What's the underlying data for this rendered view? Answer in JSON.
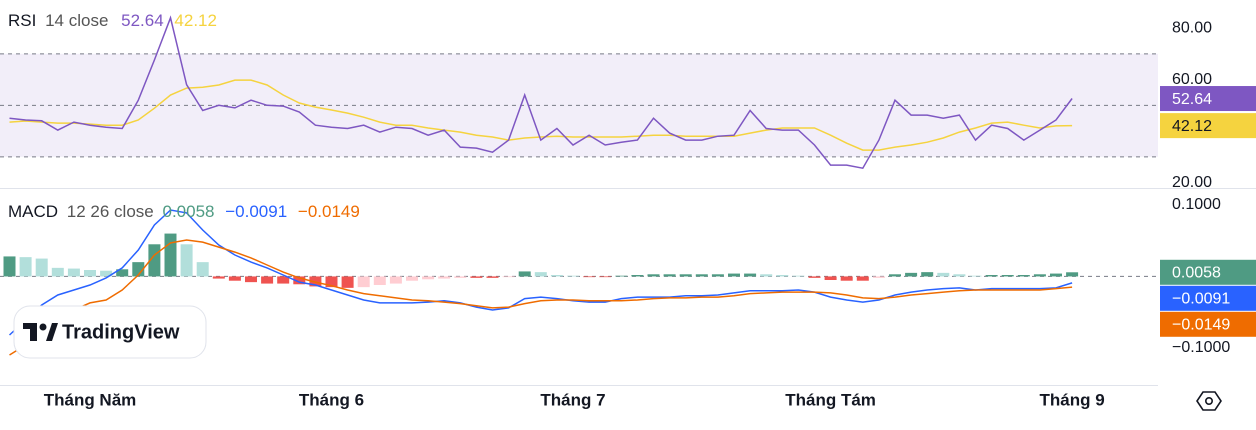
{
  "chart_data": [
    {
      "type": "line",
      "title": "RSI",
      "params": "14 close",
      "legend_values": [
        "52.64",
        "42.12"
      ],
      "series": [
        {
          "color": "#7e57c2",
          "values": [
            45,
            44.3,
            44,
            40.4,
            43.5,
            42.3,
            41.5,
            41,
            52,
            67.6,
            84,
            58,
            48,
            50,
            49,
            52,
            50,
            49.7,
            47.4,
            42.3,
            41.5,
            41,
            42.3,
            39.6,
            41.5,
            41,
            38.4,
            40.4,
            33.8,
            33.4,
            31.8,
            36.5,
            54,
            36.5,
            41,
            34.6,
            38.4,
            34.6,
            35.7,
            36.5,
            45,
            39.2,
            36.5,
            36.5,
            38,
            38.4,
            48,
            41,
            40.4,
            40.4,
            34.6,
            26.8,
            26.8,
            25.6,
            36.5,
            52,
            46.2,
            46.2,
            45,
            46.2,
            36.5,
            42.3,
            41,
            36.5,
            40.4,
            44.3,
            52.64
          ]
        },
        {
          "color": "#f5d33f",
          "values": [
            43.5,
            43.9,
            43.5,
            43.1,
            43.1,
            42.7,
            42.3,
            42.3,
            44.3,
            48.9,
            54,
            56.7,
            57,
            57.9,
            59.8,
            59.8,
            57.9,
            54,
            50.9,
            49.3,
            48.2,
            47,
            45.4,
            43.5,
            42.3,
            42.3,
            41.2,
            40.4,
            39.6,
            38.4,
            37.7,
            36.5,
            37.3,
            37.7,
            38,
            37.7,
            37.7,
            37.7,
            37.7,
            38,
            38.4,
            38.4,
            38,
            38,
            38,
            38,
            39.2,
            40.4,
            41.2,
            41.2,
            41.2,
            38.4,
            35.3,
            32.6,
            32.6,
            33.8,
            34.6,
            35.7,
            37.3,
            39.6,
            41.2,
            43.1,
            43.5,
            42.3,
            41.2,
            42,
            42.12
          ]
        }
      ],
      "band": [
        30,
        70
      ],
      "band_color": "#7e57c2",
      "middle": 50,
      "ylim": [
        17.9,
        90.9
      ],
      "yticks": [
        {
          "value": 80,
          "label": "80.00"
        },
        {
          "value": 60,
          "label": "60.00"
        },
        {
          "value": 20,
          "label": "20.00"
        }
      ],
      "grid": false
    },
    {
      "type": "macd",
      "title": "MACD",
      "params": "12 26 close",
      "legend_values": [
        "0.0058",
        "−0.0091",
        "−0.0149"
      ],
      "categories": [
        null,
        null,
        null,
        null,
        null,
        "Tháng Năm",
        null,
        null,
        null,
        null,
        null,
        null,
        null,
        null,
        null,
        null,
        null,
        null,
        null,
        null,
        "Tháng 6",
        null,
        null,
        null,
        null,
        null,
        null,
        null,
        null,
        null,
        null,
        null,
        null,
        null,
        null,
        "Tháng 7",
        null,
        null,
        null,
        null,
        null,
        null,
        null,
        null,
        null,
        null,
        null,
        null,
        null,
        null,
        null,
        "Tháng Tám",
        null,
        null,
        null,
        null,
        null,
        null,
        null,
        null,
        null,
        null,
        null,
        null,
        null,
        null,
        "Tháng 9"
      ],
      "histogram": {
        "colors": [
          "#4f9b83",
          "#b2dfdb",
          "#ef5350",
          "#ffcdd2"
        ],
        "values": [
          0.028,
          0.027,
          0.025,
          0.012,
          0.011,
          0.009,
          0.008,
          0.01,
          0.02,
          0.045,
          0.06,
          0.045,
          0.02,
          -0.003,
          -0.006,
          -0.008,
          -0.01,
          -0.01,
          -0.011,
          -0.014,
          -0.015,
          -0.016,
          -0.015,
          -0.012,
          -0.01,
          -0.006,
          -0.004,
          -0.003,
          -0.002,
          -0.002,
          -0.002,
          -0.001,
          0.007,
          0.006,
          0.002,
          0.001,
          -0.001,
          -0.001,
          0.001,
          0.002,
          0.003,
          0.003,
          0.003,
          0.003,
          0.003,
          0.004,
          0.004,
          0.003,
          0.002,
          0.001,
          -0.002,
          -0.005,
          -0.006,
          -0.006,
          -0.002,
          0.003,
          0.005,
          0.006,
          0.005,
          0.003,
          0.001,
          0.002,
          0.002,
          0.002,
          0.003,
          0.004,
          0.0058
        ]
      },
      "series": [
        {
          "color": "#2962ff",
          "values": [
            -0.082,
            -0.061,
            -0.04,
            -0.026,
            -0.019,
            -0.012,
            -0.002,
            0.012,
            0.037,
            0.072,
            0.093,
            0.089,
            0.065,
            0.044,
            0.03,
            0.02,
            0.012,
            0.002,
            -0.008,
            -0.012,
            -0.019,
            -0.026,
            -0.033,
            -0.037,
            -0.037,
            -0.037,
            -0.036,
            -0.034,
            -0.037,
            -0.043,
            -0.047,
            -0.044,
            -0.031,
            -0.029,
            -0.031,
            -0.034,
            -0.036,
            -0.036,
            -0.031,
            -0.029,
            -0.029,
            -0.029,
            -0.027,
            -0.027,
            -0.026,
            -0.023,
            -0.02,
            -0.02,
            -0.02,
            -0.019,
            -0.022,
            -0.029,
            -0.033,
            -0.036,
            -0.033,
            -0.026,
            -0.022,
            -0.019,
            -0.017,
            -0.016,
            -0.019,
            -0.017,
            -0.017,
            -0.017,
            -0.017,
            -0.016,
            -0.0091
          ]
        },
        {
          "color": "#ef6c00",
          "values": [
            -0.11,
            -0.096,
            -0.075,
            -0.061,
            -0.047,
            -0.037,
            -0.033,
            -0.019,
            0.002,
            0.03,
            0.047,
            0.051,
            0.048,
            0.041,
            0.034,
            0.026,
            0.016,
            0.006,
            -0.002,
            -0.008,
            -0.013,
            -0.019,
            -0.024,
            -0.027,
            -0.03,
            -0.033,
            -0.034,
            -0.036,
            -0.038,
            -0.041,
            -0.044,
            -0.043,
            -0.038,
            -0.034,
            -0.033,
            -0.033,
            -0.034,
            -0.034,
            -0.034,
            -0.033,
            -0.031,
            -0.03,
            -0.03,
            -0.029,
            -0.029,
            -0.027,
            -0.024,
            -0.023,
            -0.022,
            -0.022,
            -0.022,
            -0.023,
            -0.026,
            -0.03,
            -0.031,
            -0.029,
            -0.026,
            -0.024,
            -0.022,
            -0.02,
            -0.019,
            -0.019,
            -0.019,
            -0.019,
            -0.019,
            -0.017,
            -0.0149
          ]
        }
      ],
      "ylim": [
        -0.152,
        0.121
      ],
      "yticks": [
        {
          "value": 0.1,
          "label": "0.1000"
        },
        {
          "value": -0.1,
          "label": "−0.1000"
        }
      ],
      "grid": false
    }
  ],
  "watermark": "TradingView"
}
